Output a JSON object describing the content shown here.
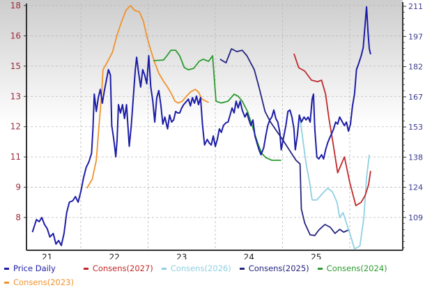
{
  "chart_data": {
    "type": "line",
    "title": "",
    "xlabel": "",
    "x_tick_labels": [
      "21",
      "22",
      "23",
      "24",
      "25"
    ],
    "x_tick_years": [
      2021,
      2022,
      2023,
      2024,
      2025
    ],
    "x_range": [
      2021.2,
      2026.8
    ],
    "left_axis": {
      "tick_labels": [
        "18",
        "16",
        "15",
        "13",
        "12",
        "11",
        "9",
        "8"
      ],
      "range": [
        6.45,
        18.1
      ]
    },
    "right_axis": {
      "tick_labels": [
        "211",
        "197",
        "182",
        "167",
        "153",
        "138",
        "124",
        "109"
      ],
      "range": [
        93.2,
        212.3
      ]
    },
    "grid": true,
    "legend_position": "bottom",
    "series": [
      {
        "name": "Price Daily",
        "axis": "right",
        "color": "#1c1ca6",
        "x": [
          2021.28,
          2021.34,
          2021.38,
          2021.42,
          2021.46,
          2021.5,
          2021.54,
          2021.59,
          2021.63,
          2021.67,
          2021.71,
          2021.75,
          2021.79,
          2021.83,
          2021.88,
          2021.92,
          2021.96,
          2022.0,
          2022.04,
          2022.08,
          2022.12,
          2022.16,
          2022.18,
          2022.2,
          2022.23,
          2022.26,
          2022.29,
          2022.32,
          2022.35,
          2022.38,
          2022.41,
          2022.44,
          2022.46,
          2022.49,
          2022.52,
          2022.54,
          2022.56,
          2022.59,
          2022.62,
          2022.65,
          2022.68,
          2022.72,
          2022.75,
          2022.78,
          2022.81,
          2022.83,
          2022.86,
          2022.89,
          2022.92,
          2022.95,
          2022.98,
          2023.01,
          2023.04,
          2023.07,
          2023.1,
          2023.13,
          2023.16,
          2023.19,
          2023.22,
          2023.25,
          2023.29,
          2023.32,
          2023.35,
          2023.38,
          2023.41,
          2023.44,
          2023.47,
          2023.5,
          2023.53,
          2023.56,
          2023.6,
          2023.63,
          2023.66,
          2023.69,
          2023.72,
          2023.75,
          2023.78,
          2023.81,
          2023.84,
          2023.88,
          2023.91,
          2023.94,
          2023.97,
          2024.0,
          2024.03,
          2024.06,
          2024.09,
          2024.12,
          2024.16,
          2024.19,
          2024.22,
          2024.25,
          2024.28,
          2024.31,
          2024.34,
          2024.37,
          2024.4,
          2024.44,
          2024.47,
          2024.5,
          2024.53,
          2024.56,
          2024.59,
          2024.62,
          2024.65,
          2024.68,
          2024.72,
          2024.75,
          2024.78,
          2024.81,
          2024.84,
          2024.87,
          2024.9,
          2024.93,
          2024.96,
          2024.98,
          2025.02,
          2025.05,
          2025.08,
          2025.11,
          2025.14,
          2025.17,
          2025.19,
          2025.22,
          2025.25,
          2025.28,
          2025.32,
          2025.35,
          2025.38,
          2025.41,
          2025.44,
          2025.46,
          2025.48,
          2025.51,
          2025.54,
          2025.58,
          2025.61,
          2025.64,
          2025.67,
          2025.7,
          2025.73,
          2025.76,
          2025.79,
          2025.82,
          2025.85,
          2025.89,
          2025.92,
          2025.95,
          2025.98,
          2026.01,
          2026.04,
          2026.07,
          2026.1,
          2026.13,
          2026.17,
          2026.2,
          2026.22,
          2026.24,
          2026.25,
          2026.27,
          2026.29,
          2026.31
        ],
        "y": [
          101.9,
          108.0,
          107.0,
          109.0,
          105.6,
          103.6,
          99.6,
          101.3,
          96.2,
          97.9,
          95.5,
          101.3,
          111.4,
          116.4,
          117.1,
          119.1,
          116.4,
          121.5,
          128.2,
          133.2,
          135.9,
          140.0,
          151.8,
          168.6,
          160.2,
          166.9,
          170.9,
          164.2,
          170.3,
          175.3,
          180.4,
          177.7,
          153.4,
          146.7,
          138.3,
          146.7,
          163.5,
          159.5,
          163.5,
          156.8,
          163.5,
          143.4,
          153.4,
          166.9,
          180.4,
          186.4,
          178.7,
          172.0,
          180.4,
          177.7,
          173.6,
          187.1,
          172.0,
          165.2,
          155.1,
          166.9,
          170.3,
          163.5,
          154.1,
          157.5,
          151.8,
          158.5,
          155.1,
          156.1,
          160.2,
          159.5,
          159.5,
          161.9,
          163.5,
          164.6,
          166.2,
          162.9,
          166.9,
          164.2,
          167.6,
          163.5,
          166.9,
          153.4,
          144.0,
          146.7,
          145.0,
          144.0,
          148.4,
          143.3,
          146.7,
          151.8,
          150.1,
          153.4,
          154.8,
          155.1,
          158.5,
          161.9,
          159.5,
          165.2,
          161.9,
          165.2,
          160.9,
          157.5,
          159.5,
          156.1,
          153.4,
          156.1,
          148.4,
          145.0,
          141.7,
          139.3,
          142.7,
          148.4,
          153.4,
          156.1,
          157.5,
          160.9,
          156.8,
          155.1,
          150.1,
          141.7,
          148.4,
          153.4,
          160.2,
          160.9,
          157.5,
          151.8,
          141.7,
          148.4,
          158.5,
          155.1,
          157.5,
          156.1,
          157.5,
          155.1,
          166.2,
          168.6,
          151.8,
          138.3,
          137.3,
          139.3,
          137.3,
          141.7,
          145.0,
          147.4,
          149.4,
          151.8,
          155.1,
          154.1,
          157.5,
          155.1,
          153.4,
          155.1,
          150.7,
          154.1,
          162.9,
          168.6,
          180.4,
          183.1,
          187.1,
          191.1,
          198.9,
          207.3,
          210.7,
          198.9,
          190.5,
          187.8
        ]
      },
      {
        "name": "Consens(2027)",
        "axis": "left",
        "color": "#c0282a",
        "x": [
          2025.17,
          2025.24,
          2025.33,
          2025.43,
          2025.52,
          2025.58,
          2025.64,
          2025.69,
          2025.75,
          2025.82,
          2025.92,
          2026.0,
          2026.09,
          2026.17,
          2026.23,
          2026.28,
          2026.31
        ],
        "y": [
          15.73,
          15.07,
          14.91,
          14.48,
          14.41,
          14.48,
          13.82,
          12.67,
          11.52,
          10.11,
          10.86,
          9.65,
          8.56,
          8.72,
          9.05,
          9.55,
          10.2
        ]
      },
      {
        "name": "Consens(2026)",
        "axis": "left",
        "color": "#8fd0e2",
        "x": [
          2025.26,
          2025.35,
          2025.4,
          2025.44,
          2025.51,
          2025.59,
          2025.67,
          2025.74,
          2025.81,
          2025.85,
          2025.9,
          2025.95,
          2026.01,
          2026.07,
          2026.15,
          2026.21,
          2026.25,
          2026.29
        ],
        "y": [
          12.67,
          10.53,
          9.71,
          8.83,
          8.83,
          9.12,
          9.38,
          9.22,
          8.72,
          8.0,
          8.23,
          7.74,
          7.15,
          6.52,
          6.65,
          8.0,
          9.88,
          10.96
        ]
      },
      {
        "name": "Consens(2025)",
        "axis": "left",
        "color": "#23237e",
        "x": [
          2024.07,
          2024.16,
          2024.24,
          2024.32,
          2024.4,
          2024.47,
          2024.58,
          2024.65,
          2024.74,
          2024.82,
          2024.89,
          2025.0,
          2025.1,
          2025.2,
          2025.26,
          2025.28,
          2025.33,
          2025.41,
          2025.48,
          2025.54,
          2025.63,
          2025.71,
          2025.78,
          2025.85,
          2025.91,
          2025.98
        ],
        "y": [
          15.47,
          15.3,
          15.96,
          15.83,
          15.89,
          15.63,
          14.97,
          14.15,
          13.0,
          12.51,
          12.18,
          11.68,
          11.19,
          10.7,
          10.53,
          8.4,
          7.74,
          7.18,
          7.15,
          7.41,
          7.67,
          7.54,
          7.25,
          7.44,
          7.31,
          7.41
        ]
      },
      {
        "name": "Consens(2024)",
        "axis": "left",
        "color": "#2b9a2f",
        "x": [
          2023.08,
          2023.23,
          2023.28,
          2023.34,
          2023.41,
          2023.47,
          2023.54,
          2023.6,
          2023.68,
          2023.76,
          2023.82,
          2023.9,
          2023.96,
          2024.01,
          2024.09,
          2024.19,
          2024.28,
          2024.34,
          2024.4,
          2024.48,
          2024.53,
          2024.58,
          2024.63,
          2024.69,
          2024.75,
          2024.84,
          2024.94,
          2024.98
        ],
        "y": [
          15.4,
          15.43,
          15.63,
          15.89,
          15.89,
          15.63,
          15.07,
          14.97,
          15.04,
          15.37,
          15.47,
          15.37,
          15.63,
          13.49,
          13.4,
          13.49,
          13.82,
          13.72,
          13.49,
          13.0,
          12.51,
          12.01,
          11.52,
          11.03,
          10.83,
          10.7,
          10.7,
          10.7
        ]
      },
      {
        "name": "Consens(2023)",
        "axis": "left",
        "color": "#f0922c",
        "x": [
          2022.09,
          2022.17,
          2022.23,
          2022.27,
          2022.31,
          2022.33,
          2022.4,
          2022.47,
          2022.54,
          2022.61,
          2022.67,
          2022.74,
          2022.8,
          2022.87,
          2022.93,
          2022.99,
          2023.05,
          2023.1,
          2023.16,
          2023.22,
          2023.29,
          2023.35,
          2023.4,
          2023.45,
          2023.51,
          2023.57,
          2023.63,
          2023.7,
          2023.75,
          2023.8,
          2023.86,
          2023.9
        ],
        "y": [
          9.38,
          9.81,
          10.7,
          12.34,
          13.82,
          14.97,
          15.37,
          15.8,
          16.62,
          17.28,
          17.77,
          18.0,
          17.77,
          17.7,
          17.28,
          16.45,
          15.8,
          15.3,
          14.81,
          14.48,
          14.15,
          13.82,
          13.49,
          13.4,
          13.49,
          13.72,
          13.92,
          14.05,
          13.92,
          13.59,
          13.49,
          13.43
        ]
      }
    ]
  }
}
